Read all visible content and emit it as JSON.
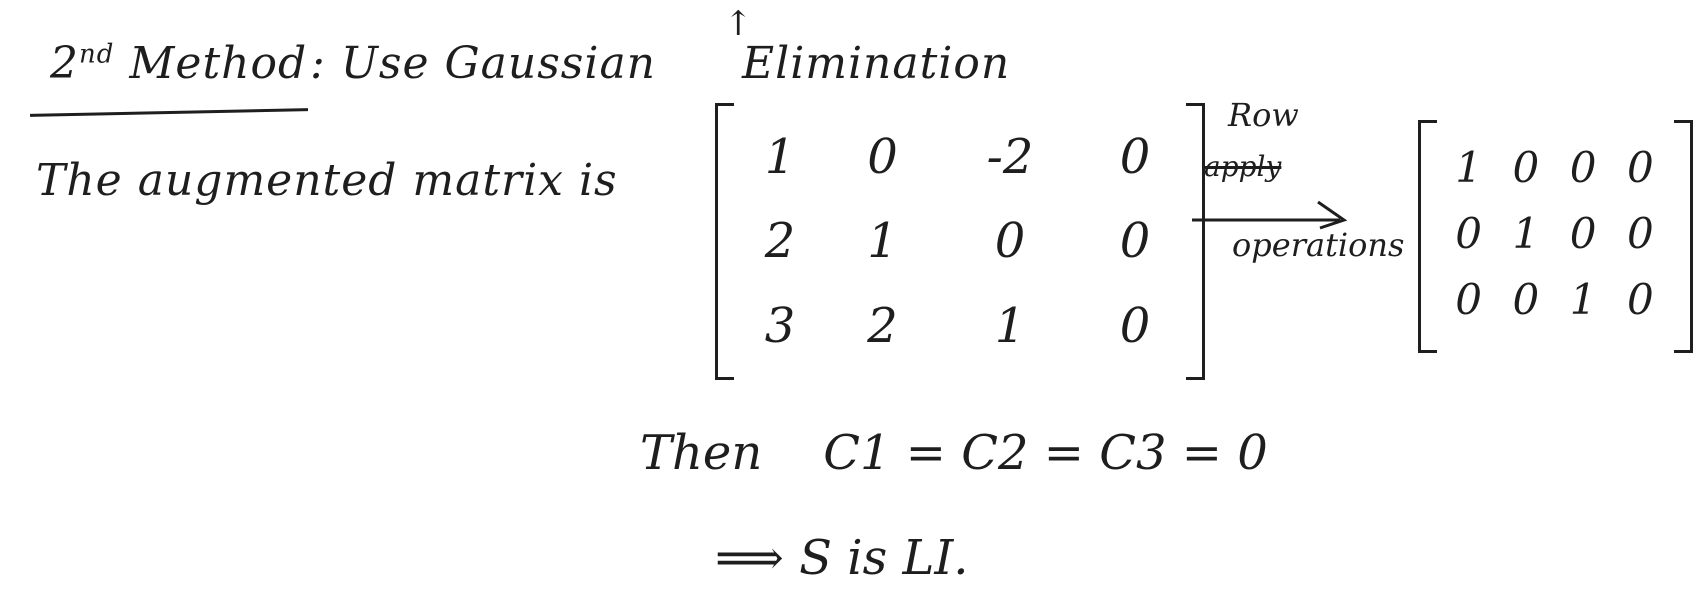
{
  "heading": {
    "part1": "2",
    "superscript": "nd",
    "part2": " Method",
    "colon": ":",
    "part3": " Use Gaussian",
    "caret": "↑",
    "part4": " Elimination"
  },
  "intro_text": "The augmented matrix is",
  "augmented_matrix": {
    "cells": [
      "1",
      "0",
      "-2",
      "0",
      "2",
      "1",
      "0",
      "0",
      "3",
      "2",
      "1",
      "0"
    ]
  },
  "arrow": {
    "label_top": "Row",
    "label_scribble": "apply",
    "label_bottom": "operations"
  },
  "reduced_matrix": {
    "cells": [
      "1",
      "0",
      "0",
      "0",
      "0",
      "1",
      "0",
      "0",
      "0",
      "0",
      "1",
      "0"
    ]
  },
  "conclusion": "Then    C1 = C2 = C3 = 0",
  "implication": "⟹  S is LI."
}
